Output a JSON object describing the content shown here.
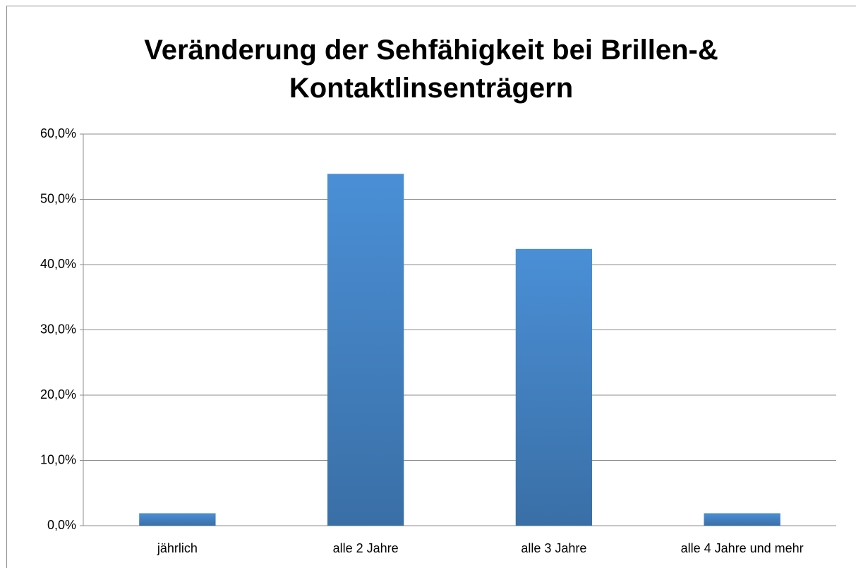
{
  "chart_data": {
    "type": "bar",
    "title": "Veränderung der Sehfähigkeit bei Brillen-& Kontaktlinsenträgern",
    "categories": [
      "jährlich",
      "alle 2 Jahre",
      "alle 3 Jahre",
      "alle 4 Jahre und mehr"
    ],
    "values": [
      1.9,
      53.9,
      42.4,
      1.9
    ],
    "color": "#4a8fd6",
    "ylim": [
      0,
      60
    ],
    "yticks": [
      {
        "value": 0,
        "label": "0,0%"
      },
      {
        "value": 10,
        "label": "10,0%"
      },
      {
        "value": 20,
        "label": "20,0%"
      },
      {
        "value": 30,
        "label": "30,0%"
      },
      {
        "value": 40,
        "label": "40,0%"
      },
      {
        "value": 50,
        "label": "50,0%"
      },
      {
        "value": 60,
        "label": "60,0%"
      }
    ],
    "grid": true
  }
}
